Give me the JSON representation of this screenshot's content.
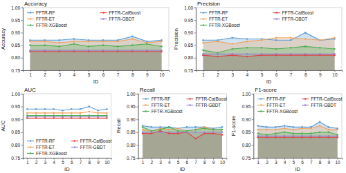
{
  "chart_data": [
    {
      "type": "line",
      "title": "Accuracy",
      "x_label": "ID",
      "y_label": "Accuracy",
      "x": [
        1,
        2,
        3,
        4,
        5,
        6,
        7,
        8,
        9,
        10
      ],
      "xlim": [
        0.5,
        10.5
      ],
      "xticks": [
        1,
        2,
        3,
        4,
        5,
        6,
        7,
        8,
        9,
        10
      ],
      "ylim": [
        0.75,
        1
      ],
      "yticks": [
        0.75,
        {
          "value": 0.8,
          "label": "0.80"
        },
        0.85,
        {
          "value": 0.9,
          "label": "0.90"
        },
        0.95,
        {
          "value": 1,
          "label": "1.00"
        }
      ],
      "legend": "top",
      "marker": "circle",
      "line_style": "solid",
      "series": [
        {
          "name": "FFTR-RF",
          "color": "#5b9bd5",
          "values": [
            0.87,
            0.87,
            0.87,
            0.875,
            0.87,
            0.87,
            0.87,
            0.885,
            0.865,
            0.87
          ]
        },
        {
          "name": "FFTR-CatBoost",
          "color": "#e0443e",
          "values": [
            0.825,
            0.825,
            0.825,
            0.825,
            0.825,
            0.825,
            0.825,
            0.825,
            0.825,
            0.825
          ]
        },
        {
          "name": "FFTR-ET",
          "color": "#f4a259",
          "values": [
            0.865,
            0.865,
            0.86,
            0.865,
            0.865,
            0.865,
            0.865,
            0.875,
            0.86,
            0.865
          ]
        },
        {
          "name": "FFTR-GBDT",
          "color": "#9b7fd4",
          "values": [
            0.83,
            0.83,
            0.83,
            0.83,
            0.83,
            0.83,
            0.83,
            0.83,
            0.83,
            0.83
          ]
        },
        {
          "name": "FFTR-XGBoost",
          "color": "#4caf50",
          "values": [
            0.85,
            0.85,
            0.845,
            0.855,
            0.845,
            0.85,
            0.845,
            0.85,
            0.855,
            0.845
          ]
        }
      ]
    },
    {
      "type": "line",
      "title": "Precision",
      "x_label": "ID",
      "y_label": "Precision",
      "x": [
        1,
        2,
        3,
        4,
        5,
        6,
        7,
        8,
        9,
        10
      ],
      "xlim": [
        0.5,
        10.5
      ],
      "xticks": [
        1,
        2,
        3,
        4,
        5,
        6,
        7,
        8,
        9,
        10
      ],
      "ylim": [
        0.75,
        1
      ],
      "yticks": [
        0.75,
        {
          "value": 0.8,
          "label": "0.80"
        },
        0.85,
        {
          "value": 0.9,
          "label": "0.90"
        },
        0.95,
        {
          "value": 1,
          "label": "1.00"
        }
      ],
      "legend": "top",
      "marker": "circle",
      "line_style": "solid",
      "series": [
        {
          "name": "FFTR-RF",
          "color": "#5b9bd5",
          "values": [
            0.87,
            0.87,
            0.88,
            0.875,
            0.875,
            0.87,
            0.87,
            0.9,
            0.87,
            0.875
          ]
        },
        {
          "name": "FFTR-CatBoost",
          "color": "#e0443e",
          "values": [
            0.81,
            0.805,
            0.81,
            0.805,
            0.81,
            0.81,
            0.81,
            0.81,
            0.81,
            0.81
          ]
        },
        {
          "name": "FFTR-ET",
          "color": "#f4a259",
          "values": [
            0.86,
            0.865,
            0.855,
            0.865,
            0.87,
            0.88,
            0.88,
            0.875,
            0.87,
            0.88
          ]
        },
        {
          "name": "FFTR-GBDT",
          "color": "#9b7fd4",
          "values": [
            0.815,
            0.815,
            0.815,
            0.815,
            0.815,
            0.815,
            0.815,
            0.815,
            0.815,
            0.815
          ]
        },
        {
          "name": "FFTR-XGBoost",
          "color": "#4caf50",
          "values": [
            0.83,
            0.82,
            0.835,
            0.84,
            0.84,
            0.835,
            0.84,
            0.845,
            0.84,
            0.835
          ]
        }
      ]
    },
    {
      "type": "line",
      "title": "AUC",
      "x_label": "ID",
      "y_label": "AUC",
      "x": [
        1,
        2,
        3,
        4,
        5,
        6,
        7,
        8,
        9,
        10
      ],
      "xlim": [
        0.5,
        10.5
      ],
      "xticks": [
        1,
        2,
        3,
        4,
        5,
        6,
        7,
        8,
        9,
        10
      ],
      "ylim": [
        0.75,
        1
      ],
      "yticks": [
        0.75,
        {
          "value": 0.8,
          "label": "0.80"
        },
        0.85,
        {
          "value": 0.9,
          "label": "0.90"
        },
        0.95,
        {
          "value": 1,
          "label": "1.00"
        }
      ],
      "legend": "bottom",
      "marker": "circle",
      "line_style": "solid",
      "series": [
        {
          "name": "FFTR-RF",
          "color": "#5b9bd5",
          "values": [
            0.94,
            0.94,
            0.94,
            0.94,
            0.935,
            0.94,
            0.94,
            0.95,
            0.935,
            0.94
          ]
        },
        {
          "name": "FFTR-CatBoost",
          "color": "#e0443e",
          "values": [
            0.905,
            0.905,
            0.905,
            0.905,
            0.905,
            0.905,
            0.905,
            0.905,
            0.905,
            0.905
          ]
        },
        {
          "name": "FFTR-ET",
          "color": "#f4a259",
          "values": [
            0.925,
            0.925,
            0.925,
            0.925,
            0.925,
            0.925,
            0.925,
            0.93,
            0.925,
            0.925
          ]
        },
        {
          "name": "FFTR-GBDT",
          "color": "#9b7fd4",
          "values": [
            0.91,
            0.91,
            0.91,
            0.91,
            0.91,
            0.91,
            0.91,
            0.91,
            0.91,
            0.91
          ]
        },
        {
          "name": "FFTR-XGBoost",
          "color": "#4caf50",
          "values": [
            0.915,
            0.915,
            0.915,
            0.915,
            0.915,
            0.915,
            0.915,
            0.915,
            0.915,
            0.915
          ]
        }
      ]
    },
    {
      "type": "line",
      "title": "Recall",
      "x_label": "ID",
      "y_label": "Recall",
      "x": [
        1,
        2,
        3,
        4,
        5,
        6,
        7,
        8,
        9,
        10
      ],
      "xlim": [
        0.5,
        10.5
      ],
      "xticks": [
        1,
        2,
        3,
        4,
        5,
        6,
        7,
        8,
        9,
        10
      ],
      "ylim": [
        0.75,
        1
      ],
      "yticks": [
        0.75,
        {
          "value": 0.8,
          "label": "0.80"
        },
        0.85,
        {
          "value": 0.9,
          "label": "0.90"
        },
        0.95,
        {
          "value": 1,
          "label": "1.00"
        }
      ],
      "legend": "top",
      "marker": "circle",
      "line_style": "solid",
      "series": [
        {
          "name": "FFTR-RF",
          "color": "#5b9bd5",
          "values": [
            0.875,
            0.87,
            0.87,
            0.87,
            0.865,
            0.87,
            0.87,
            0.87,
            0.865,
            0.87
          ]
        },
        {
          "name": "FFTR-CatBoost",
          "color": "#e0443e",
          "values": [
            0.845,
            0.845,
            0.855,
            0.845,
            0.845,
            0.85,
            0.825,
            0.845,
            0.845,
            0.84
          ]
        },
        {
          "name": "FFTR-ET",
          "color": "#f4a259",
          "values": [
            0.86,
            0.855,
            0.865,
            0.86,
            0.865,
            0.855,
            0.86,
            0.87,
            0.86,
            0.86
          ]
        },
        {
          "name": "FFTR-GBDT",
          "color": "#9b7fd4",
          "values": [
            0.85,
            0.85,
            0.85,
            0.85,
            0.85,
            0.85,
            0.85,
            0.85,
            0.85,
            0.85
          ]
        },
        {
          "name": "FFTR-XGBoost",
          "color": "#4caf50",
          "values": [
            0.87,
            0.855,
            0.86,
            0.87,
            0.855,
            0.855,
            0.86,
            0.865,
            0.86,
            0.86
          ]
        }
      ]
    },
    {
      "type": "line",
      "title": "F1-score",
      "x_label": "ID",
      "y_label": "F1-score",
      "x": [
        1,
        2,
        3,
        4,
        5,
        6,
        7,
        8,
        9,
        10
      ],
      "xlim": [
        0.5,
        10.5
      ],
      "xticks": [
        1,
        2,
        3,
        4,
        5,
        6,
        7,
        8,
        9,
        10
      ],
      "ylim": [
        0.75,
        1
      ],
      "yticks": [
        0.75,
        {
          "value": 0.8,
          "label": "0.80"
        },
        0.85,
        {
          "value": 0.9,
          "label": "0.90"
        },
        0.95,
        {
          "value": 1,
          "label": "1.00"
        }
      ],
      "legend": "top",
      "marker": "circle",
      "line_style": "solid",
      "series": [
        {
          "name": "FFTR-RF",
          "color": "#5b9bd5",
          "values": [
            0.875,
            0.87,
            0.87,
            0.875,
            0.87,
            0.87,
            0.87,
            0.89,
            0.87,
            0.865
          ]
        },
        {
          "name": "FFTR-CatBoost",
          "color": "#e0443e",
          "values": [
            0.83,
            0.83,
            0.83,
            0.83,
            0.83,
            0.83,
            0.83,
            0.83,
            0.83,
            0.83
          ]
        },
        {
          "name": "FFTR-ET",
          "color": "#f4a259",
          "values": [
            0.86,
            0.86,
            0.86,
            0.865,
            0.86,
            0.865,
            0.865,
            0.875,
            0.86,
            0.86
          ]
        },
        {
          "name": "FFTR-GBDT",
          "color": "#9b7fd4",
          "values": [
            0.835,
            0.835,
            0.835,
            0.835,
            0.835,
            0.835,
            0.835,
            0.835,
            0.835,
            0.835
          ]
        },
        {
          "name": "FFTR-XGBoost",
          "color": "#4caf50",
          "values": [
            0.845,
            0.84,
            0.845,
            0.85,
            0.845,
            0.845,
            0.845,
            0.85,
            0.85,
            0.84
          ]
        }
      ]
    }
  ]
}
